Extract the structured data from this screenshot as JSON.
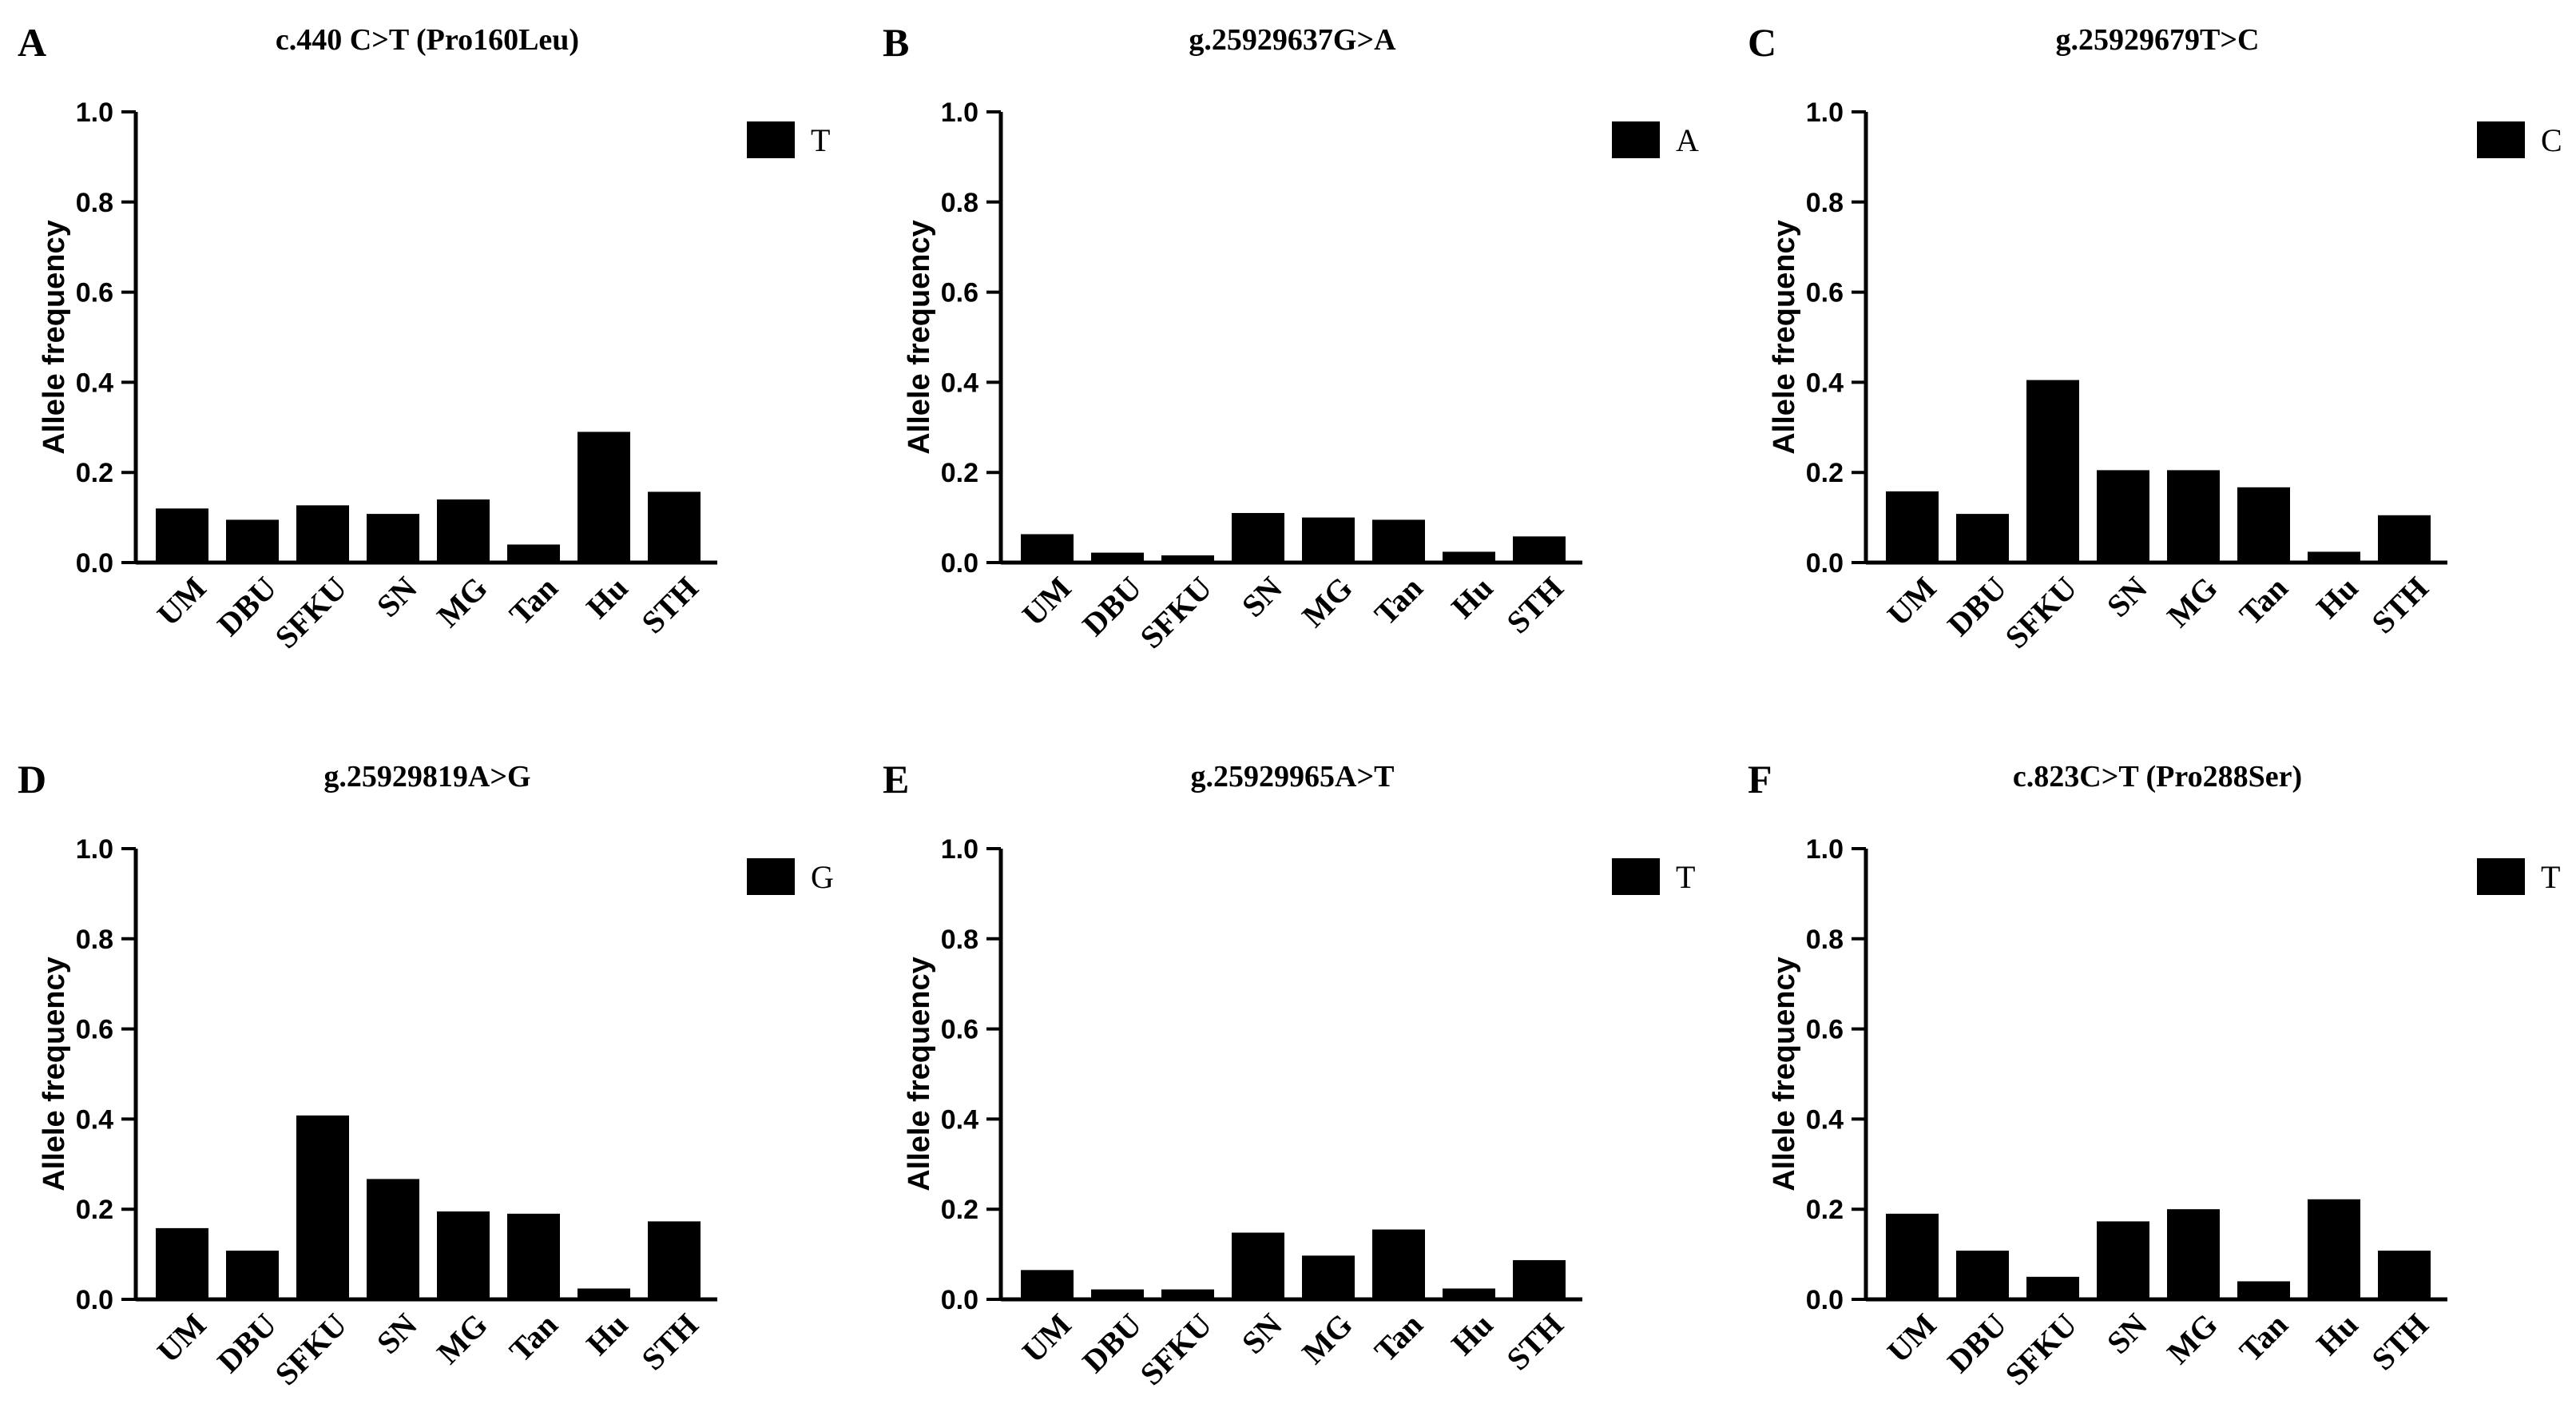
{
  "chart_data": [
    {
      "type": "bar",
      "panel": "A",
      "title": "c.440 C>T (Pro160Leu)",
      "ylabel": "Allele frequency",
      "xlabel": "",
      "ylim": [
        0,
        1.0
      ],
      "yticks": [
        "0.0",
        "0.2",
        "0.4",
        "0.6",
        "0.8",
        "1.0"
      ],
      "legend": "T",
      "color": "#000000",
      "categories": [
        "UM",
        "DBU",
        "SFKU",
        "SN",
        "MG",
        "Tan",
        "Hu",
        "STH"
      ],
      "values": [
        0.12,
        0.095,
        0.127,
        0.108,
        0.14,
        0.04,
        0.29,
        0.157
      ]
    },
    {
      "type": "bar",
      "panel": "B",
      "title": "g.25929637G>A",
      "ylabel": "Allele frequency",
      "xlabel": "",
      "ylim": [
        0,
        1.0
      ],
      "yticks": [
        "0.0",
        "0.2",
        "0.4",
        "0.6",
        "0.8",
        "1.0"
      ],
      "legend": "A",
      "color": "#000000",
      "categories": [
        "UM",
        "DBU",
        "SFKU",
        "SN",
        "MG",
        "Tan",
        "Hu",
        "STH"
      ],
      "values": [
        0.063,
        0.022,
        0.016,
        0.11,
        0.1,
        0.095,
        0.024,
        0.058
      ]
    },
    {
      "type": "bar",
      "panel": "C",
      "title": "g.25929679T>C",
      "ylabel": "Allele frequency",
      "xlabel": "",
      "ylim": [
        0,
        1.0
      ],
      "yticks": [
        "0.0",
        "0.2",
        "0.4",
        "0.6",
        "0.8",
        "1.0"
      ],
      "legend": "C",
      "color": "#000000",
      "categories": [
        "UM",
        "DBU",
        "SFKU",
        "SN",
        "MG",
        "Tan",
        "Hu",
        "STH"
      ],
      "values": [
        0.158,
        0.108,
        0.405,
        0.205,
        0.205,
        0.167,
        0.024,
        0.105
      ]
    },
    {
      "type": "bar",
      "panel": "D",
      "title": "g.25929819A>G",
      "ylabel": "Allele frequency",
      "xlabel": "",
      "ylim": [
        0,
        1.0
      ],
      "yticks": [
        "0.0",
        "0.2",
        "0.4",
        "0.6",
        "0.8",
        "1.0"
      ],
      "legend": "G",
      "color": "#000000",
      "categories": [
        "UM",
        "DBU",
        "SFKU",
        "SN",
        "MG",
        "Tan",
        "Hu",
        "STH"
      ],
      "values": [
        0.158,
        0.108,
        0.408,
        0.267,
        0.195,
        0.19,
        0.024,
        0.173
      ]
    },
    {
      "type": "bar",
      "panel": "E",
      "title": "g.25929965A>T",
      "ylabel": "Allele frequency",
      "xlabel": "",
      "ylim": [
        0,
        1.0
      ],
      "yticks": [
        "0.0",
        "0.2",
        "0.4",
        "0.6",
        "0.8",
        "1.0"
      ],
      "legend": "T",
      "color": "#000000",
      "categories": [
        "UM",
        "DBU",
        "SFKU",
        "SN",
        "MG",
        "Tan",
        "Hu",
        "STH"
      ],
      "values": [
        0.065,
        0.022,
        0.022,
        0.148,
        0.097,
        0.155,
        0.024,
        0.087
      ]
    },
    {
      "type": "bar",
      "panel": "F",
      "title": "c.823C>T (Pro288Ser)",
      "ylabel": "Allele frequency",
      "xlabel": "",
      "ylim": [
        0,
        1.0
      ],
      "yticks": [
        "0.0",
        "0.2",
        "0.4",
        "0.6",
        "0.8",
        "1.0"
      ],
      "legend": "T",
      "color": "#000000",
      "categories": [
        "UM",
        "DBU",
        "SFKU",
        "SN",
        "MG",
        "Tan",
        "Hu",
        "STH"
      ],
      "values": [
        0.19,
        0.108,
        0.05,
        0.173,
        0.2,
        0.04,
        0.222,
        0.108
      ]
    }
  ]
}
